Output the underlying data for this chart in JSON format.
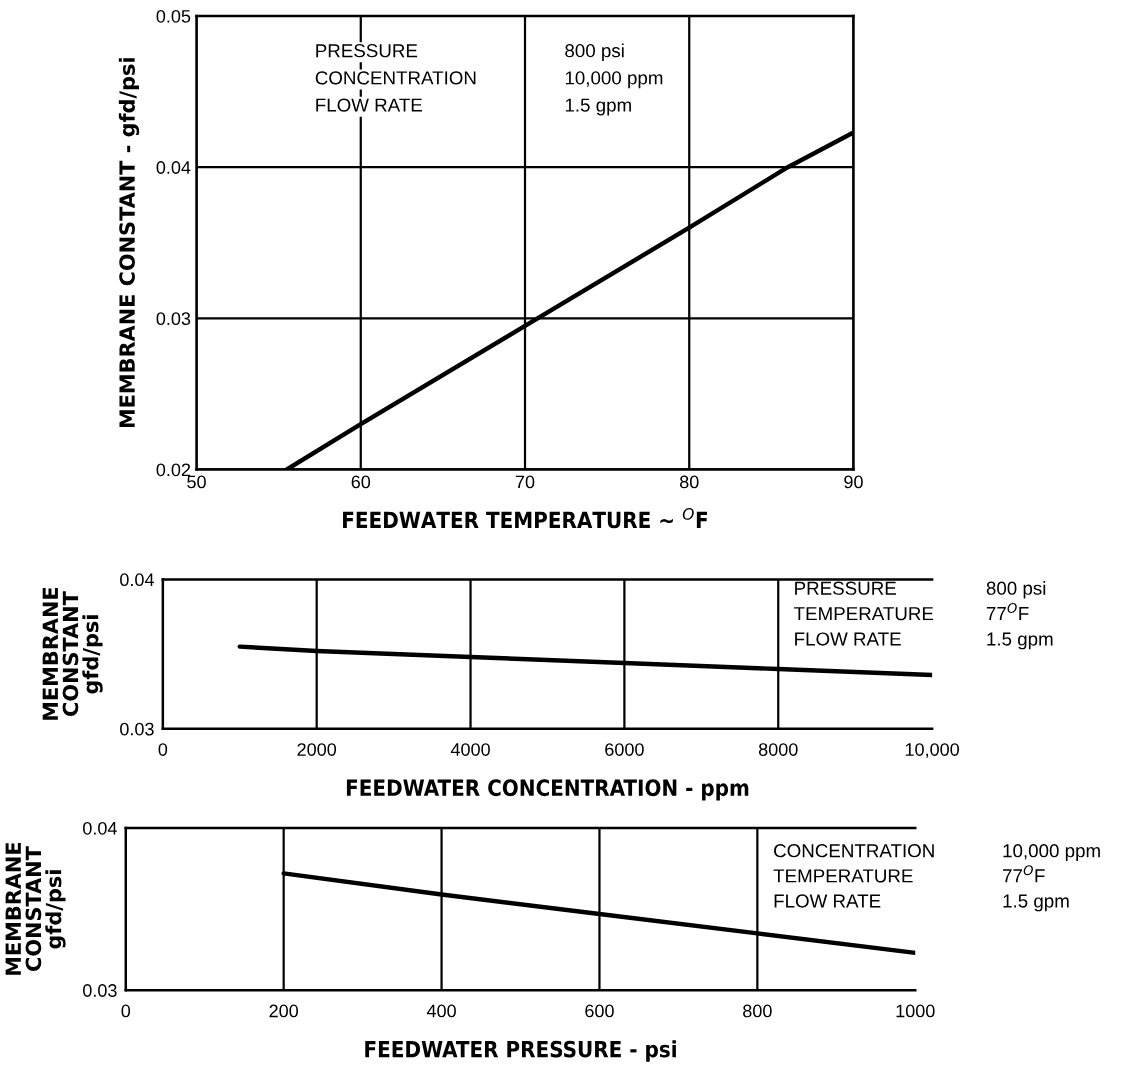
{
  "chart_data": [
    {
      "type": "line",
      "xlabel": "FEEDWATER TEMPERATURE ~ $^{O}$F",
      "ylabel": "MEMBRANE CONSTANT - gfd/psi",
      "x": [
        55.5,
        60,
        70,
        80,
        86,
        90
      ],
      "series": [
        {
          "color": "#000000",
          "values": [
            0.02,
            0.023,
            0.0295,
            0.036,
            0.04,
            0.0423
          ]
        }
      ],
      "xlim": [
        50,
        90
      ],
      "xticks": [
        50,
        60,
        70,
        80,
        90
      ],
      "ylim": [
        0.02,
        0.05
      ],
      "yticks": [
        0.02,
        0.03,
        0.04,
        0.05
      ],
      "grid": true,
      "annotations": [
        "PRESSURE",
        "800 psi",
        "CONCENTRATION",
        "10,000 ppm",
        "FLOW RATE",
        "1.5 gpm"
      ]
    },
    {
      "type": "line",
      "xlabel": "FEEDWATER CONCENTRATION - ppm",
      "ylabel": "MEMBRANE\nCONSTANT\ngfd/psi",
      "x": [
        1000,
        2000,
        4000,
        6000,
        8000,
        10000
      ],
      "series": [
        {
          "color": "#000000",
          "values": [
            0.0355,
            0.0352,
            0.0348,
            0.0344,
            0.034,
            0.0336
          ]
        }
      ],
      "xlim": [
        0,
        10000
      ],
      "xticks": [
        0,
        2000,
        4000,
        6000,
        8000,
        {
          "value": 10000,
          "label": "10,000"
        }
      ],
      "ylim": [
        0.03,
        0.04
      ],
      "yticks": [
        0.03,
        0.04
      ],
      "grid": "x",
      "annotations": [
        "PRESSURE",
        "800 psi",
        "TEMPERATURE",
        "77$^{O}$F",
        "FLOW RATE",
        "1.5 gpm"
      ]
    },
    {
      "type": "line",
      "xlabel": "FEEDWATER PRESSURE - psi",
      "ylabel": "MEMBRANE\nCONSTANT\ngfd/psi",
      "x": [
        200,
        400,
        600,
        800,
        1000
      ],
      "series": [
        {
          "color": "#000000",
          "values": [
            0.0372,
            0.0359,
            0.0347,
            0.0335,
            0.0323
          ]
        }
      ],
      "xlim": [
        0,
        1000
      ],
      "xticks": [
        0,
        200,
        400,
        600,
        800,
        1000
      ],
      "ylim": [
        0.03,
        0.04
      ],
      "yticks": [
        0.03,
        0.04
      ],
      "grid": "x",
      "annotations": [
        "CONCENTRATION",
        "10,000 ppm",
        "TEMPERATURE",
        "77$^{O}$F",
        "FLOW RATE",
        "1.5 gpm"
      ]
    }
  ]
}
